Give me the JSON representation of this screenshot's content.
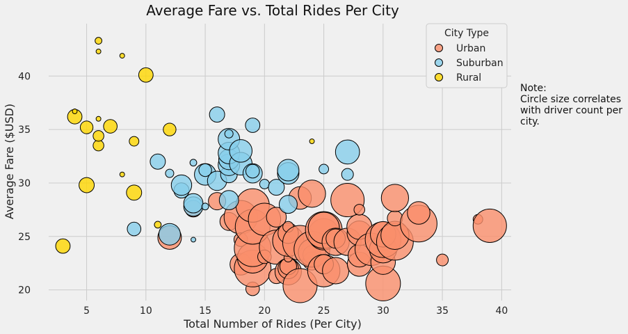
{
  "chart_data": {
    "type": "scatter",
    "title": "Average Fare vs. Total Rides Per City",
    "xlabel": "Total Number of Rides (Per City)",
    "ylabel": "Average Fare ($USD)",
    "xlim": [
      1.8,
      40.8
    ],
    "ylim": [
      19.0,
      44.9
    ],
    "xticks": [
      5,
      10,
      15,
      20,
      25,
      30,
      35,
      40
    ],
    "yticks": [
      20,
      25,
      30,
      35,
      40
    ],
    "grid": true,
    "legend": {
      "title": "City Type",
      "placement": "top-right",
      "entries": [
        "Urban",
        "Suburban",
        "Rural"
      ]
    },
    "note_lines": [
      "Note:",
      "Circle size correlates",
      "with driver count per",
      "city."
    ],
    "series": [
      {
        "name": "Urban",
        "color": "#FA8F6B",
        "points": [
          [
            12,
            24.9,
            24
          ],
          [
            14,
            27.6,
            12
          ],
          [
            16,
            28.3,
            13
          ],
          [
            17,
            26.4,
            14
          ],
          [
            18,
            22.4,
            20
          ],
          [
            18,
            26.8,
            48
          ],
          [
            18,
            24.7,
            8
          ],
          [
            19,
            20.1,
            8
          ],
          [
            19,
            22.0,
            58
          ],
          [
            19,
            23.0,
            40
          ],
          [
            19,
            23.9,
            58
          ],
          [
            19,
            25.9,
            52
          ],
          [
            19,
            27.9,
            48
          ],
          [
            20,
            23.1,
            8
          ],
          [
            20,
            26.6,
            45
          ],
          [
            21,
            21.3,
            10
          ],
          [
            21,
            24.0,
            50
          ],
          [
            21,
            26.8,
            17
          ],
          [
            22,
            21.7,
            30
          ],
          [
            22,
            22.0,
            18
          ],
          [
            22,
            22.2,
            12
          ],
          [
            22,
            23.0,
            3
          ],
          [
            22,
            24.6,
            42
          ],
          [
            22,
            25.3,
            18
          ],
          [
            22,
            25.9,
            5
          ],
          [
            23,
            20.4,
            50
          ],
          [
            23,
            24.4,
            52
          ],
          [
            23,
            28.6,
            22
          ],
          [
            24,
            22.7,
            14
          ],
          [
            24,
            23.3,
            14
          ],
          [
            24,
            23.5,
            32
          ],
          [
            24,
            23.8,
            55
          ],
          [
            24,
            29.0,
            32
          ],
          [
            25,
            21.8,
            45
          ],
          [
            25,
            22.4,
            16
          ],
          [
            25,
            25.2,
            42
          ],
          [
            25,
            25.6,
            58
          ],
          [
            25,
            25.8,
            42
          ],
          [
            26,
            21.8,
            30
          ],
          [
            26,
            24.5,
            32
          ],
          [
            26,
            24.8,
            16
          ],
          [
            27,
            24.5,
            32
          ],
          [
            27,
            28.4,
            48
          ],
          [
            28,
            22.4,
            25
          ],
          [
            28,
            23.2,
            22
          ],
          [
            28,
            25.3,
            26
          ],
          [
            28,
            25.9,
            27
          ],
          [
            28,
            27.5,
            5
          ],
          [
            29,
            23.8,
            45
          ],
          [
            30,
            20.6,
            52
          ],
          [
            30,
            22.6,
            26
          ],
          [
            30,
            23.8,
            32
          ],
          [
            30,
            24.7,
            55
          ],
          [
            30,
            25.2,
            28
          ],
          [
            31,
            24.5,
            58
          ],
          [
            31,
            25.1,
            34
          ],
          [
            31,
            26.7,
            10
          ],
          [
            31,
            28.6,
            32
          ],
          [
            33,
            26.2,
            58
          ],
          [
            33,
            27.2,
            22
          ],
          [
            35,
            22.8,
            6
          ],
          [
            38,
            26.6,
            4
          ],
          [
            39,
            26.0,
            48
          ]
        ]
      },
      {
        "name": "Suburban",
        "color": "#87CEEB",
        "points": [
          [
            9,
            25.7,
            8
          ],
          [
            11,
            32.0,
            10
          ],
          [
            12,
            25.2,
            20
          ],
          [
            12,
            30.9,
            3
          ],
          [
            13,
            29.3,
            10
          ],
          [
            13,
            29.8,
            18
          ],
          [
            14,
            24.7,
            1
          ],
          [
            14,
            27.8,
            16
          ],
          [
            14,
            28.1,
            16
          ],
          [
            14,
            31.9,
            2
          ],
          [
            15,
            27.8,
            2
          ],
          [
            15,
            30.8,
            20
          ],
          [
            15,
            31.2,
            7
          ],
          [
            16,
            30.2,
            16
          ],
          [
            16,
            36.4,
            10
          ],
          [
            17,
            28.4,
            16
          ],
          [
            17,
            30.8,
            12
          ],
          [
            17,
            31.7,
            20
          ],
          [
            17,
            32.2,
            18
          ],
          [
            17,
            32.8,
            20
          ],
          [
            17,
            34.1,
            20
          ],
          [
            17,
            34.6,
            3
          ],
          [
            18,
            31.8,
            22
          ],
          [
            18,
            33.0,
            22
          ],
          [
            19,
            30.9,
            16
          ],
          [
            19,
            31.1,
            8
          ],
          [
            19,
            35.4,
            9
          ],
          [
            20,
            29.9,
            4
          ],
          [
            21,
            29.6,
            11
          ],
          [
            22,
            28.0,
            14
          ],
          [
            22,
            30.9,
            20
          ],
          [
            22,
            31.2,
            20
          ],
          [
            25,
            31.3,
            4
          ],
          [
            27,
            30.8,
            6
          ],
          [
            27,
            32.9,
            25
          ]
        ]
      },
      {
        "name": "Rural",
        "color": "#FFD700",
        "points": [
          [
            3,
            24.1,
            9
          ],
          [
            4,
            36.2,
            9
          ],
          [
            4,
            36.7,
            1
          ],
          [
            5,
            29.8,
            10
          ],
          [
            5,
            35.2,
            7
          ],
          [
            6,
            33.5,
            5
          ],
          [
            6,
            34.4,
            5
          ],
          [
            6,
            36.0,
            1
          ],
          [
            6,
            42.3,
            1
          ],
          [
            6,
            43.3,
            2
          ],
          [
            7,
            35.3,
            8
          ],
          [
            8,
            30.8,
            1
          ],
          [
            8,
            41.9,
            1
          ],
          [
            9,
            29.1,
            10
          ],
          [
            9,
            33.9,
            4
          ],
          [
            10,
            40.1,
            9
          ],
          [
            11,
            26.1,
            2
          ],
          [
            12,
            35.0,
            7
          ],
          [
            24,
            33.9,
            1
          ]
        ]
      }
    ]
  }
}
